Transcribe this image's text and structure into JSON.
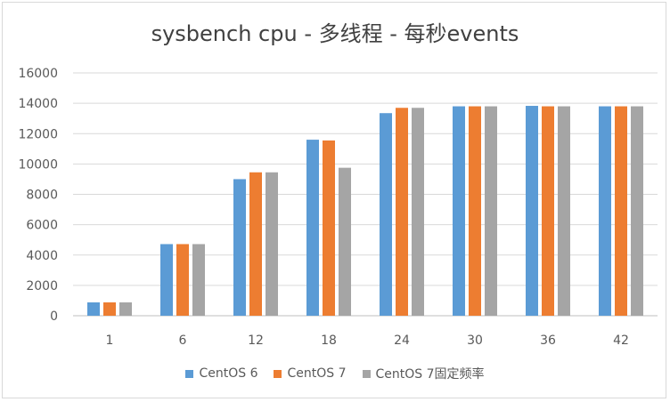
{
  "chart_data": {
    "type": "bar",
    "title": "sysbench  cpu - 多线程 - 每秒events",
    "categories": [
      "1",
      "6",
      "12",
      "18",
      "24",
      "30",
      "36",
      "42"
    ],
    "ylim": [
      0,
      16000
    ],
    "yticks": [
      0,
      2000,
      4000,
      6000,
      8000,
      10000,
      12000,
      14000,
      16000
    ],
    "grid": true,
    "legend_position": "bottom",
    "series": [
      {
        "name": "CentOS 6",
        "color": "#5b9bd5",
        "values": [
          880,
          4720,
          9000,
          11600,
          13350,
          13800,
          13830,
          13800
        ]
      },
      {
        "name": "CentOS 7",
        "color": "#ed7d31",
        "values": [
          880,
          4720,
          9450,
          11550,
          13700,
          13800,
          13800,
          13800
        ]
      },
      {
        "name": "CentOS 7固定频率",
        "color": "#a5a5a5",
        "values": [
          880,
          4720,
          9450,
          9750,
          13700,
          13800,
          13800,
          13800
        ]
      }
    ]
  }
}
